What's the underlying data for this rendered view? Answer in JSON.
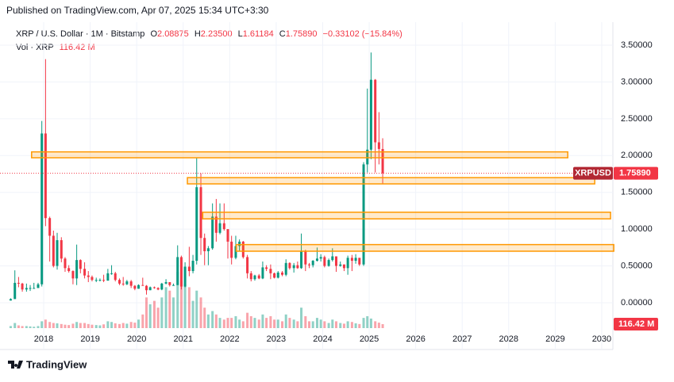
{
  "header": {
    "published": "Published on TradingView.com, Apr 07, 2025 15:34 UTC+3:30"
  },
  "legend": {
    "symbol": "XRP / U.S. Dollar · 1M · Bitstamp",
    "o_label": "O",
    "o": "2.08875",
    "h_label": "H",
    "h": "2.23500",
    "l_label": "L",
    "l": "1.61184",
    "c_label": "C",
    "c": "1.75890",
    "change": "−0.33102 (−15.84%)",
    "vol_label": "Vol · XRP",
    "vol": "116.42 M"
  },
  "footer": {
    "brand": "TradingView"
  },
  "chart_data": {
    "type": "candlestick",
    "up_color": "#089981",
    "down_color": "#f23645",
    "x": [
      2017.29,
      2017.38,
      2017.46,
      2017.54,
      2017.63,
      2017.71,
      2017.79,
      2017.88,
      2017.96,
      2018.04,
      2018.13,
      2018.21,
      2018.29,
      2018.38,
      2018.46,
      2018.54,
      2018.63,
      2018.71,
      2018.79,
      2018.88,
      2018.96,
      2019.04,
      2019.13,
      2019.21,
      2019.29,
      2019.38,
      2019.46,
      2019.54,
      2019.63,
      2019.71,
      2019.79,
      2019.88,
      2019.96,
      2020.04,
      2020.13,
      2020.21,
      2020.29,
      2020.38,
      2020.46,
      2020.54,
      2020.63,
      2020.71,
      2020.79,
      2020.88,
      2020.96,
      2021.04,
      2021.13,
      2021.21,
      2021.29,
      2021.38,
      2021.46,
      2021.54,
      2021.63,
      2021.71,
      2021.79,
      2021.88,
      2021.96,
      2022.04,
      2022.13,
      2022.21,
      2022.29,
      2022.38,
      2022.46,
      2022.54,
      2022.63,
      2022.71,
      2022.79,
      2022.88,
      2022.96,
      2023.04,
      2023.13,
      2023.21,
      2023.29,
      2023.38,
      2023.46,
      2023.54,
      2023.63,
      2023.71,
      2023.79,
      2023.88,
      2023.96,
      2024.04,
      2024.13,
      2024.21,
      2024.29,
      2024.38,
      2024.46,
      2024.54,
      2024.63,
      2024.71,
      2024.79,
      2024.88,
      2024.96,
      2025.04,
      2025.13,
      2025.21,
      2025.29
    ],
    "open": [
      0.03,
      0.05,
      0.27,
      0.26,
      0.18,
      0.2,
      0.2,
      0.2,
      0.25,
      2.3,
      1.15,
      0.91,
      0.5,
      0.85,
      0.6,
      0.47,
      0.43,
      0.33,
      0.58,
      0.46,
      0.37,
      0.35,
      0.31,
      0.31,
      0.31,
      0.3,
      0.4,
      0.4,
      0.31,
      0.26,
      0.25,
      0.29,
      0.23,
      0.19,
      0.24,
      0.23,
      0.17,
      0.21,
      0.2,
      0.18,
      0.26,
      0.28,
      0.24,
      0.24,
      0.62,
      0.22,
      0.49,
      0.43,
      0.57,
      1.57,
      0.88,
      0.7,
      0.74,
      1.17,
      0.95,
      1.08,
      1.0,
      0.83,
      0.61,
      0.77,
      0.83,
      0.62,
      0.4,
      0.32,
      0.37,
      0.33,
      0.48,
      0.46,
      0.4,
      0.34,
      0.41,
      0.38,
      0.54,
      0.47,
      0.51,
      0.47,
      0.7,
      0.52,
      0.51,
      0.57,
      0.6,
      0.62,
      0.5,
      0.58,
      0.63,
      0.5,
      0.52,
      0.47,
      0.61,
      0.57,
      0.61,
      0.52,
      1.88,
      2.08,
      3.03,
      2.18,
      2.08875
    ],
    "high": [
      0.06,
      0.44,
      0.35,
      0.27,
      0.26,
      0.24,
      0.27,
      0.27,
      2.47,
      3.31,
      1.17,
      0.98,
      0.95,
      0.89,
      0.62,
      0.51,
      0.44,
      0.79,
      0.59,
      0.55,
      0.43,
      0.37,
      0.34,
      0.33,
      0.38,
      0.46,
      0.51,
      0.42,
      0.33,
      0.35,
      0.31,
      0.31,
      0.24,
      0.25,
      0.34,
      0.24,
      0.22,
      0.22,
      0.21,
      0.27,
      0.32,
      0.28,
      0.26,
      0.78,
      0.64,
      0.55,
      0.76,
      0.65,
      1.97,
      1.76,
      0.94,
      0.77,
      1.35,
      1.41,
      1.35,
      1.35,
      1.0,
      0.91,
      0.91,
      0.86,
      0.84,
      0.65,
      0.43,
      0.38,
      0.39,
      0.56,
      0.51,
      0.52,
      0.41,
      0.43,
      0.43,
      0.59,
      0.55,
      0.54,
      0.56,
      0.94,
      0.72,
      0.54,
      0.58,
      0.75,
      0.66,
      0.64,
      0.6,
      0.74,
      0.63,
      0.56,
      0.52,
      0.64,
      0.65,
      0.66,
      0.61,
      1.91,
      2.91,
      3.4,
      3.04,
      2.59,
      2.235
    ],
    "low": [
      0.03,
      0.05,
      0.21,
      0.15,
      0.15,
      0.16,
      0.19,
      0.2,
      0.22,
      1.04,
      0.56,
      0.48,
      0.45,
      0.55,
      0.42,
      0.41,
      0.25,
      0.24,
      0.4,
      0.33,
      0.28,
      0.29,
      0.28,
      0.29,
      0.28,
      0.3,
      0.38,
      0.29,
      0.24,
      0.23,
      0.24,
      0.2,
      0.17,
      0.19,
      0.23,
      0.11,
      0.17,
      0.19,
      0.17,
      0.17,
      0.25,
      0.22,
      0.23,
      0.24,
      0.18,
      0.21,
      0.36,
      0.4,
      0.52,
      0.65,
      0.51,
      0.51,
      0.72,
      0.83,
      0.93,
      0.98,
      0.6,
      0.52,
      0.59,
      0.7,
      0.6,
      0.33,
      0.29,
      0.3,
      0.32,
      0.32,
      0.43,
      0.32,
      0.33,
      0.33,
      0.36,
      0.36,
      0.45,
      0.41,
      0.46,
      0.46,
      0.43,
      0.47,
      0.48,
      0.56,
      0.56,
      0.48,
      0.49,
      0.56,
      0.42,
      0.49,
      0.43,
      0.38,
      0.43,
      0.53,
      0.5,
      0.5,
      1.77,
      1.95,
      1.77,
      1.88,
      1.61184
    ],
    "close": [
      0.05,
      0.27,
      0.26,
      0.18,
      0.2,
      0.2,
      0.2,
      0.25,
      2.3,
      1.15,
      0.91,
      0.5,
      0.85,
      0.6,
      0.47,
      0.43,
      0.33,
      0.58,
      0.46,
      0.37,
      0.35,
      0.31,
      0.31,
      0.31,
      0.3,
      0.4,
      0.4,
      0.31,
      0.26,
      0.25,
      0.29,
      0.23,
      0.19,
      0.24,
      0.23,
      0.17,
      0.21,
      0.2,
      0.18,
      0.26,
      0.28,
      0.24,
      0.24,
      0.62,
      0.22,
      0.49,
      0.43,
      0.57,
      1.57,
      0.88,
      0.7,
      0.74,
      1.17,
      0.95,
      1.08,
      1.0,
      0.83,
      0.61,
      0.77,
      0.83,
      0.62,
      0.4,
      0.32,
      0.37,
      0.33,
      0.48,
      0.46,
      0.4,
      0.34,
      0.41,
      0.38,
      0.54,
      0.47,
      0.51,
      0.47,
      0.7,
      0.52,
      0.51,
      0.57,
      0.6,
      0.62,
      0.5,
      0.58,
      0.63,
      0.5,
      0.52,
      0.47,
      0.61,
      0.57,
      0.61,
      0.52,
      1.88,
      2.08,
      3.03,
      2.18,
      2.09,
      1.7589
    ],
    "volume": [
      60,
      150,
      80,
      60,
      60,
      50,
      40,
      60,
      200,
      250,
      180,
      150,
      140,
      120,
      100,
      90,
      130,
      180,
      150,
      150,
      120,
      100,
      90,
      80,
      110,
      200,
      180,
      140,
      120,
      150,
      130,
      180,
      160,
      250,
      400,
      900,
      700,
      800,
      600,
      900,
      1200,
      1100,
      900,
      1650,
      1400,
      1300,
      1200,
      800,
      1100,
      900,
      600,
      400,
      500,
      400,
      300,
      250,
      300,
      300,
      350,
      250,
      200,
      450,
      350,
      300,
      250,
      400,
      300,
      350,
      250,
      250,
      200,
      400,
      300,
      250,
      200,
      600,
      350,
      200,
      200,
      300,
      250,
      200,
      150,
      250,
      200,
      150,
      130,
      200,
      180,
      140,
      120,
      300,
      350,
      280,
      200,
      160,
      116.42
    ],
    "volume_ylim": [
      0,
      2000
    ],
    "xlim": [
      2017.197,
      2030.24
    ],
    "xticks": [
      2018,
      2019,
      2020,
      2021,
      2022,
      2023,
      2024,
      2025,
      2026,
      2027,
      2028,
      2029,
      2030
    ],
    "ylim": [
      -0.345,
      3.737
    ],
    "yticks": [
      {
        "value": 0,
        "label": "0.00000"
      },
      {
        "value": 0.5,
        "label": "0.50000"
      },
      {
        "value": 1,
        "label": "1.00000"
      },
      {
        "value": 1.5,
        "label": "1.50000"
      },
      {
        "value": 2,
        "label": "2.00000"
      },
      {
        "value": 2.5,
        "label": "2.50000"
      },
      {
        "value": 3,
        "label": "3.00000"
      },
      {
        "value": 3.5,
        "label": "3.50000"
      }
    ],
    "grid": true,
    "last_price": {
      "value": 1.7589,
      "label": "1.75890",
      "symbol": "XRPUSD"
    },
    "last_volume": {
      "value": 116.42,
      "label": "116.42 M"
    },
    "zones": [
      {
        "low": 1.97,
        "high": 2.05,
        "x0": 2017.74,
        "x1": 2029.27
      },
      {
        "low": 1.615,
        "high": 1.7,
        "x0": 2021.09,
        "x1": 2029.85
      },
      {
        "low": 1.14,
        "high": 1.23,
        "x0": 2021.42,
        "x1": 2030.19
      },
      {
        "low": 0.7,
        "high": 0.79,
        "x0": 2022.14,
        "x1": 2030.26
      }
    ],
    "zone_color": "#ff9800"
  }
}
